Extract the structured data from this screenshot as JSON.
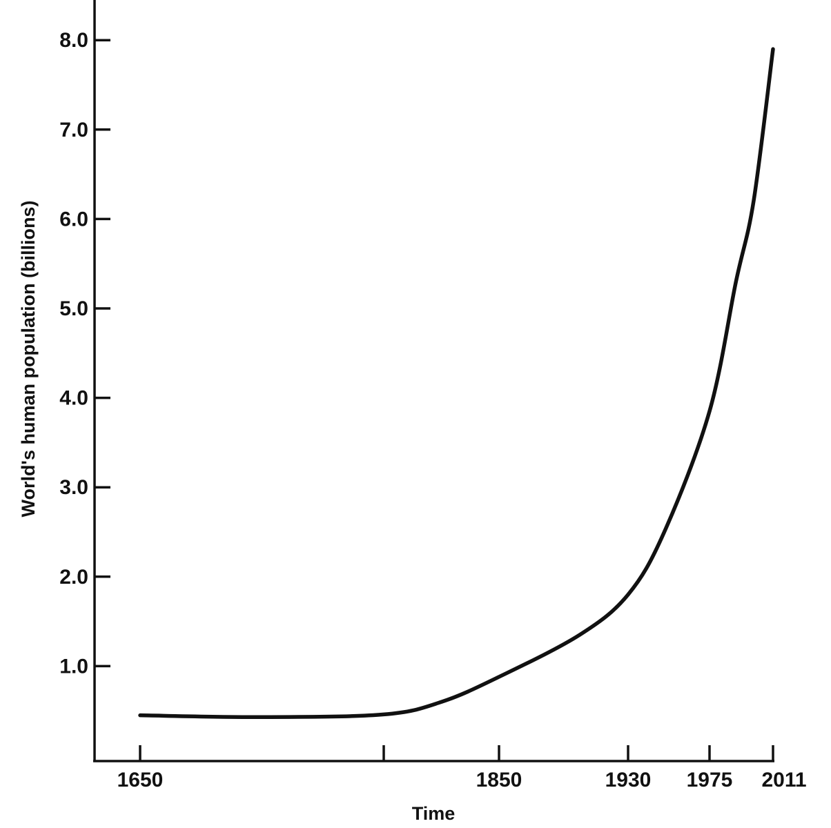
{
  "chart_data": {
    "type": "line",
    "title": "",
    "xlabel": "Time",
    "ylabel": "World's human population (billions)",
    "ylim": [
      0,
      8.0
    ],
    "y_ticks": [
      1.0,
      2.0,
      3.0,
      4.0,
      5.0,
      6.0,
      7.0,
      8.0
    ],
    "y_tick_labels": [
      "1.0",
      "2.0",
      "3.0",
      "4.0",
      "5.0",
      "6.0",
      "7.0",
      "8.0"
    ],
    "x_ticks": [
      {
        "label": "1650",
        "value": 1650
      },
      {
        "label": "",
        "value": 1750
      },
      {
        "label": "1850",
        "value": 1850
      },
      {
        "label": "1930",
        "value": 1930
      },
      {
        "label": "1975",
        "value": 1975
      },
      {
        "label": "2011",
        "value": 2011
      }
    ],
    "grid": false,
    "series": [
      {
        "points": [
          [
            1650,
            0.45
          ],
          [
            1700,
            0.43
          ],
          [
            1750,
            0.46
          ],
          [
            1800,
            0.6
          ],
          [
            1850,
            0.88
          ],
          [
            1900,
            1.35
          ],
          [
            1930,
            1.8
          ],
          [
            1950,
            2.5
          ],
          [
            1975,
            3.85
          ],
          [
            1990,
            5.3
          ],
          [
            2000,
            6.2
          ],
          [
            2011,
            7.9
          ]
        ]
      }
    ]
  }
}
